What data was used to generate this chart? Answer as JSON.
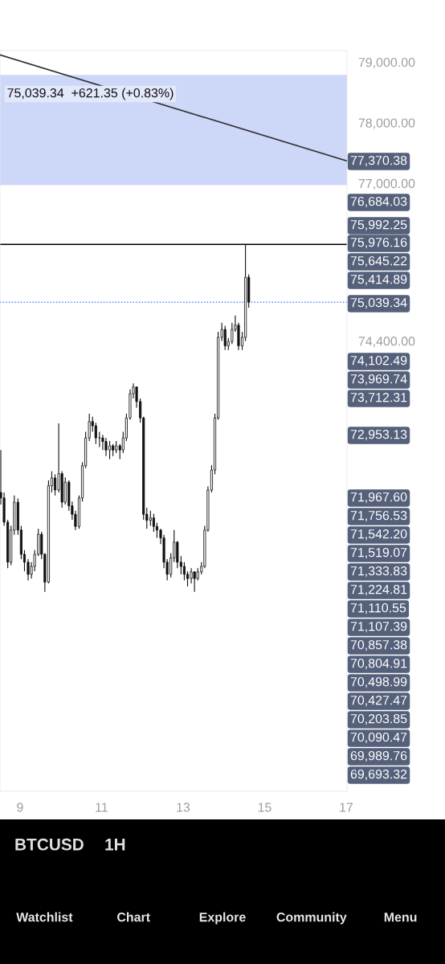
{
  "chart_data": {
    "type": "candlestick",
    "subtitle": "75,039.34  +621.35 (+0.83%)",
    "xlim": [
      8.51,
      17.02
    ],
    "xticks": [
      9,
      11,
      13,
      15,
      17
    ],
    "ylim": [
      66970,
      79190
    ],
    "yticks": [
      {
        "value": 79000,
        "label": "79,000.00"
      },
      {
        "value": 78000,
        "label": "78,000.00"
      },
      {
        "value": 77000,
        "label": "77,000.00"
      },
      {
        "value": 74400,
        "label": "74,400.00"
      }
    ],
    "bands": [
      {
        "axis": "y",
        "from": 76970,
        "to": 78790,
        "color": "#cdd8f8"
      }
    ],
    "ref_lines": [
      {
        "axis": "y",
        "value": 75992.25,
        "color": "#000000",
        "line_style": "solid"
      },
      {
        "axis": "y",
        "value": 75039.34,
        "color": "#2962ff",
        "line_style": "dotted"
      }
    ],
    "series": [
      {
        "type": "line",
        "color": "#333333",
        "x": [
          8.51,
          17.02
        ],
        "values": [
          79120,
          77370
        ]
      },
      {
        "color": "#111111",
        "x": [
          8.53,
          8.61,
          8.7,
          8.78,
          8.86,
          8.95,
          9.03,
          9.11,
          9.2,
          9.28,
          9.36,
          9.45,
          9.53,
          9.61,
          9.7,
          9.78,
          9.86,
          9.95,
          10.03,
          10.11,
          10.2,
          10.28,
          10.36,
          10.45,
          10.53,
          10.61,
          10.7,
          10.78,
          10.86,
          10.95,
          11.03,
          11.11,
          11.2,
          11.28,
          11.36,
          11.45,
          11.53,
          11.61,
          11.7,
          11.78,
          11.86,
          11.95,
          12.03,
          12.11,
          12.2,
          12.28,
          12.36,
          12.45,
          12.53,
          12.61,
          12.7,
          12.78,
          12.86,
          12.95,
          13.03,
          13.11,
          13.2,
          13.28,
          13.36,
          13.45,
          13.53,
          13.61,
          13.7,
          13.78,
          13.86,
          13.95,
          14.03,
          14.11,
          14.2,
          14.28,
          14.36,
          14.45,
          14.53,
          14.61
        ],
        "ohlc": [
          [
            71900,
            72600,
            71700,
            71810
          ],
          [
            71810,
            71900,
            71350,
            71410
          ],
          [
            71410,
            71450,
            70650,
            70750
          ],
          [
            70750,
            71350,
            70700,
            71280
          ],
          [
            71280,
            71850,
            71200,
            71740
          ],
          [
            71740,
            71800,
            71200,
            71280
          ],
          [
            71280,
            71350,
            70800,
            70880
          ],
          [
            70880,
            70950,
            70600,
            70750
          ],
          [
            70750,
            70800,
            70450,
            70550
          ],
          [
            70550,
            70750,
            70480,
            70680
          ],
          [
            70680,
            70950,
            70600,
            70880
          ],
          [
            70880,
            71300,
            70850,
            71210
          ],
          [
            71210,
            71250,
            70800,
            70880
          ],
          [
            70880,
            70900,
            70260,
            70420
          ],
          [
            70420,
            72100,
            70400,
            72010
          ],
          [
            72010,
            72250,
            71900,
            72140
          ],
          [
            72140,
            72200,
            71850,
            71940
          ],
          [
            71940,
            73040,
            71900,
            72210
          ],
          [
            72210,
            72250,
            71650,
            71740
          ],
          [
            71740,
            72150,
            71700,
            72070
          ],
          [
            72070,
            72100,
            71600,
            71680
          ],
          [
            71680,
            71750,
            71450,
            71540
          ],
          [
            71540,
            71600,
            71280,
            71340
          ],
          [
            71340,
            71850,
            71300,
            71810
          ],
          [
            71810,
            72400,
            71750,
            72340
          ],
          [
            72340,
            72900,
            72300,
            72800
          ],
          [
            72800,
            73200,
            72750,
            73070
          ],
          [
            73070,
            73150,
            72900,
            73000
          ],
          [
            73000,
            73050,
            72700,
            72800
          ],
          [
            72800,
            72900,
            72650,
            72800
          ],
          [
            72800,
            72850,
            72600,
            72740
          ],
          [
            72740,
            72800,
            72500,
            72600
          ],
          [
            72600,
            72750,
            72450,
            72670
          ],
          [
            72670,
            72700,
            72500,
            72600
          ],
          [
            72600,
            72750,
            72550,
            72670
          ],
          [
            72670,
            72700,
            72450,
            72600
          ],
          [
            72600,
            72900,
            72550,
            72800
          ],
          [
            72800,
            73200,
            72750,
            73130
          ],
          [
            73130,
            73600,
            73100,
            73530
          ],
          [
            73530,
            73700,
            73450,
            73640
          ],
          [
            73640,
            73650,
            73300,
            73400
          ],
          [
            73400,
            73450,
            73050,
            73130
          ],
          [
            73130,
            73150,
            71450,
            71540
          ],
          [
            71540,
            71650,
            71300,
            71440
          ],
          [
            71440,
            71600,
            71350,
            71480
          ],
          [
            71480,
            71550,
            71250,
            71340
          ],
          [
            71340,
            71400,
            71150,
            71280
          ],
          [
            71280,
            71300,
            71050,
            71150
          ],
          [
            71150,
            71200,
            70650,
            70750
          ],
          [
            70750,
            70800,
            70450,
            70550
          ],
          [
            70550,
            70900,
            70500,
            70820
          ],
          [
            70820,
            71280,
            70750,
            71080
          ],
          [
            71080,
            71100,
            70650,
            70750
          ],
          [
            70750,
            70850,
            70550,
            70680
          ],
          [
            70680,
            70750,
            70450,
            70550
          ],
          [
            70550,
            70600,
            70350,
            70480
          ],
          [
            70480,
            70650,
            70400,
            70590
          ],
          [
            70590,
            70600,
            70260,
            70480
          ],
          [
            70480,
            70650,
            70450,
            70590
          ],
          [
            70590,
            70750,
            70550,
            70680
          ],
          [
            70680,
            71350,
            70650,
            71280
          ],
          [
            71280,
            72000,
            71250,
            71940
          ],
          [
            71940,
            72350,
            71900,
            72270
          ],
          [
            72270,
            73200,
            72200,
            73130
          ],
          [
            73130,
            74550,
            73100,
            74460
          ],
          [
            74460,
            74700,
            74400,
            74590
          ],
          [
            74590,
            74650,
            74250,
            74320
          ],
          [
            74320,
            74450,
            74250,
            74390
          ],
          [
            74390,
            74700,
            74350,
            74590
          ],
          [
            74590,
            74820,
            74550,
            74660
          ],
          [
            74660,
            74700,
            74250,
            74320
          ],
          [
            74320,
            74550,
            74250,
            74460
          ],
          [
            74460,
            75990,
            74400,
            75450
          ],
          [
            75450,
            75500,
            74950,
            75039.34
          ]
        ]
      }
    ],
    "annotations": [
      "77,370.38",
      "76,684.03",
      "75,992.25",
      "75,976.16",
      "75,645.22",
      "75,414.89",
      "75,039.34",
      "74,102.49",
      "73,969.74",
      "73,712.31",
      "72,953.13",
      "71,967.60",
      "71,756.53",
      "71,542.20",
      "71,519.07",
      "71,333.83",
      "71,224.81",
      "71,110.55",
      "71,107.39",
      "70,857.38",
      "70,804.91",
      "70,498.99",
      "70,427.47",
      "70,203.85",
      "70,090.47",
      "69,989.76",
      "69,693.32",
      "BTCUSD",
      "1H",
      "Watchlist",
      "Chart",
      "Explore",
      "Community",
      "Menu"
    ]
  }
}
